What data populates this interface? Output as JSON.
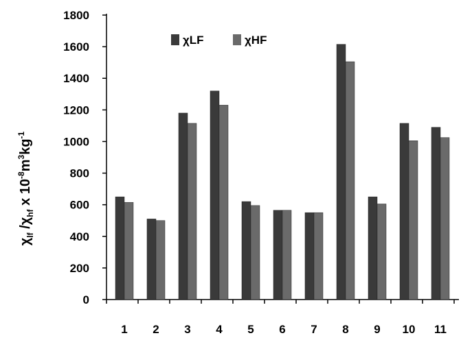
{
  "chart_data": {
    "type": "bar",
    "categories": [
      "1",
      "2",
      "3",
      "4",
      "5",
      "6",
      "7",
      "8",
      "9",
      "10",
      "11"
    ],
    "series": [
      {
        "name": "χLF",
        "color": "#3a3a3a",
        "values": [
          650,
          510,
          1180,
          1320,
          620,
          565,
          550,
          1615,
          650,
          1115,
          1090
        ]
      },
      {
        "name": "χHF",
        "color": "#6a6a6a",
        "values": [
          615,
          500,
          1115,
          1230,
          595,
          565,
          550,
          1505,
          605,
          1005,
          1025
        ]
      }
    ],
    "yticks": [
      "0",
      "200",
      "400",
      "600",
      "800",
      "1000",
      "1200",
      "1400",
      "1600",
      "1800"
    ],
    "ylim": [
      0,
      1800
    ],
    "ylabel": {
      "chi1": "χ",
      "sub1": "lf",
      "slash": " /",
      "chi2": "χ",
      "sub2": "hf",
      "mid": " x 10",
      "exp1": "-8",
      "m": "m",
      "exp2": "3",
      "kg": "kg",
      "exp3": "-1"
    },
    "legend_position": "top-left",
    "grid": false
  }
}
